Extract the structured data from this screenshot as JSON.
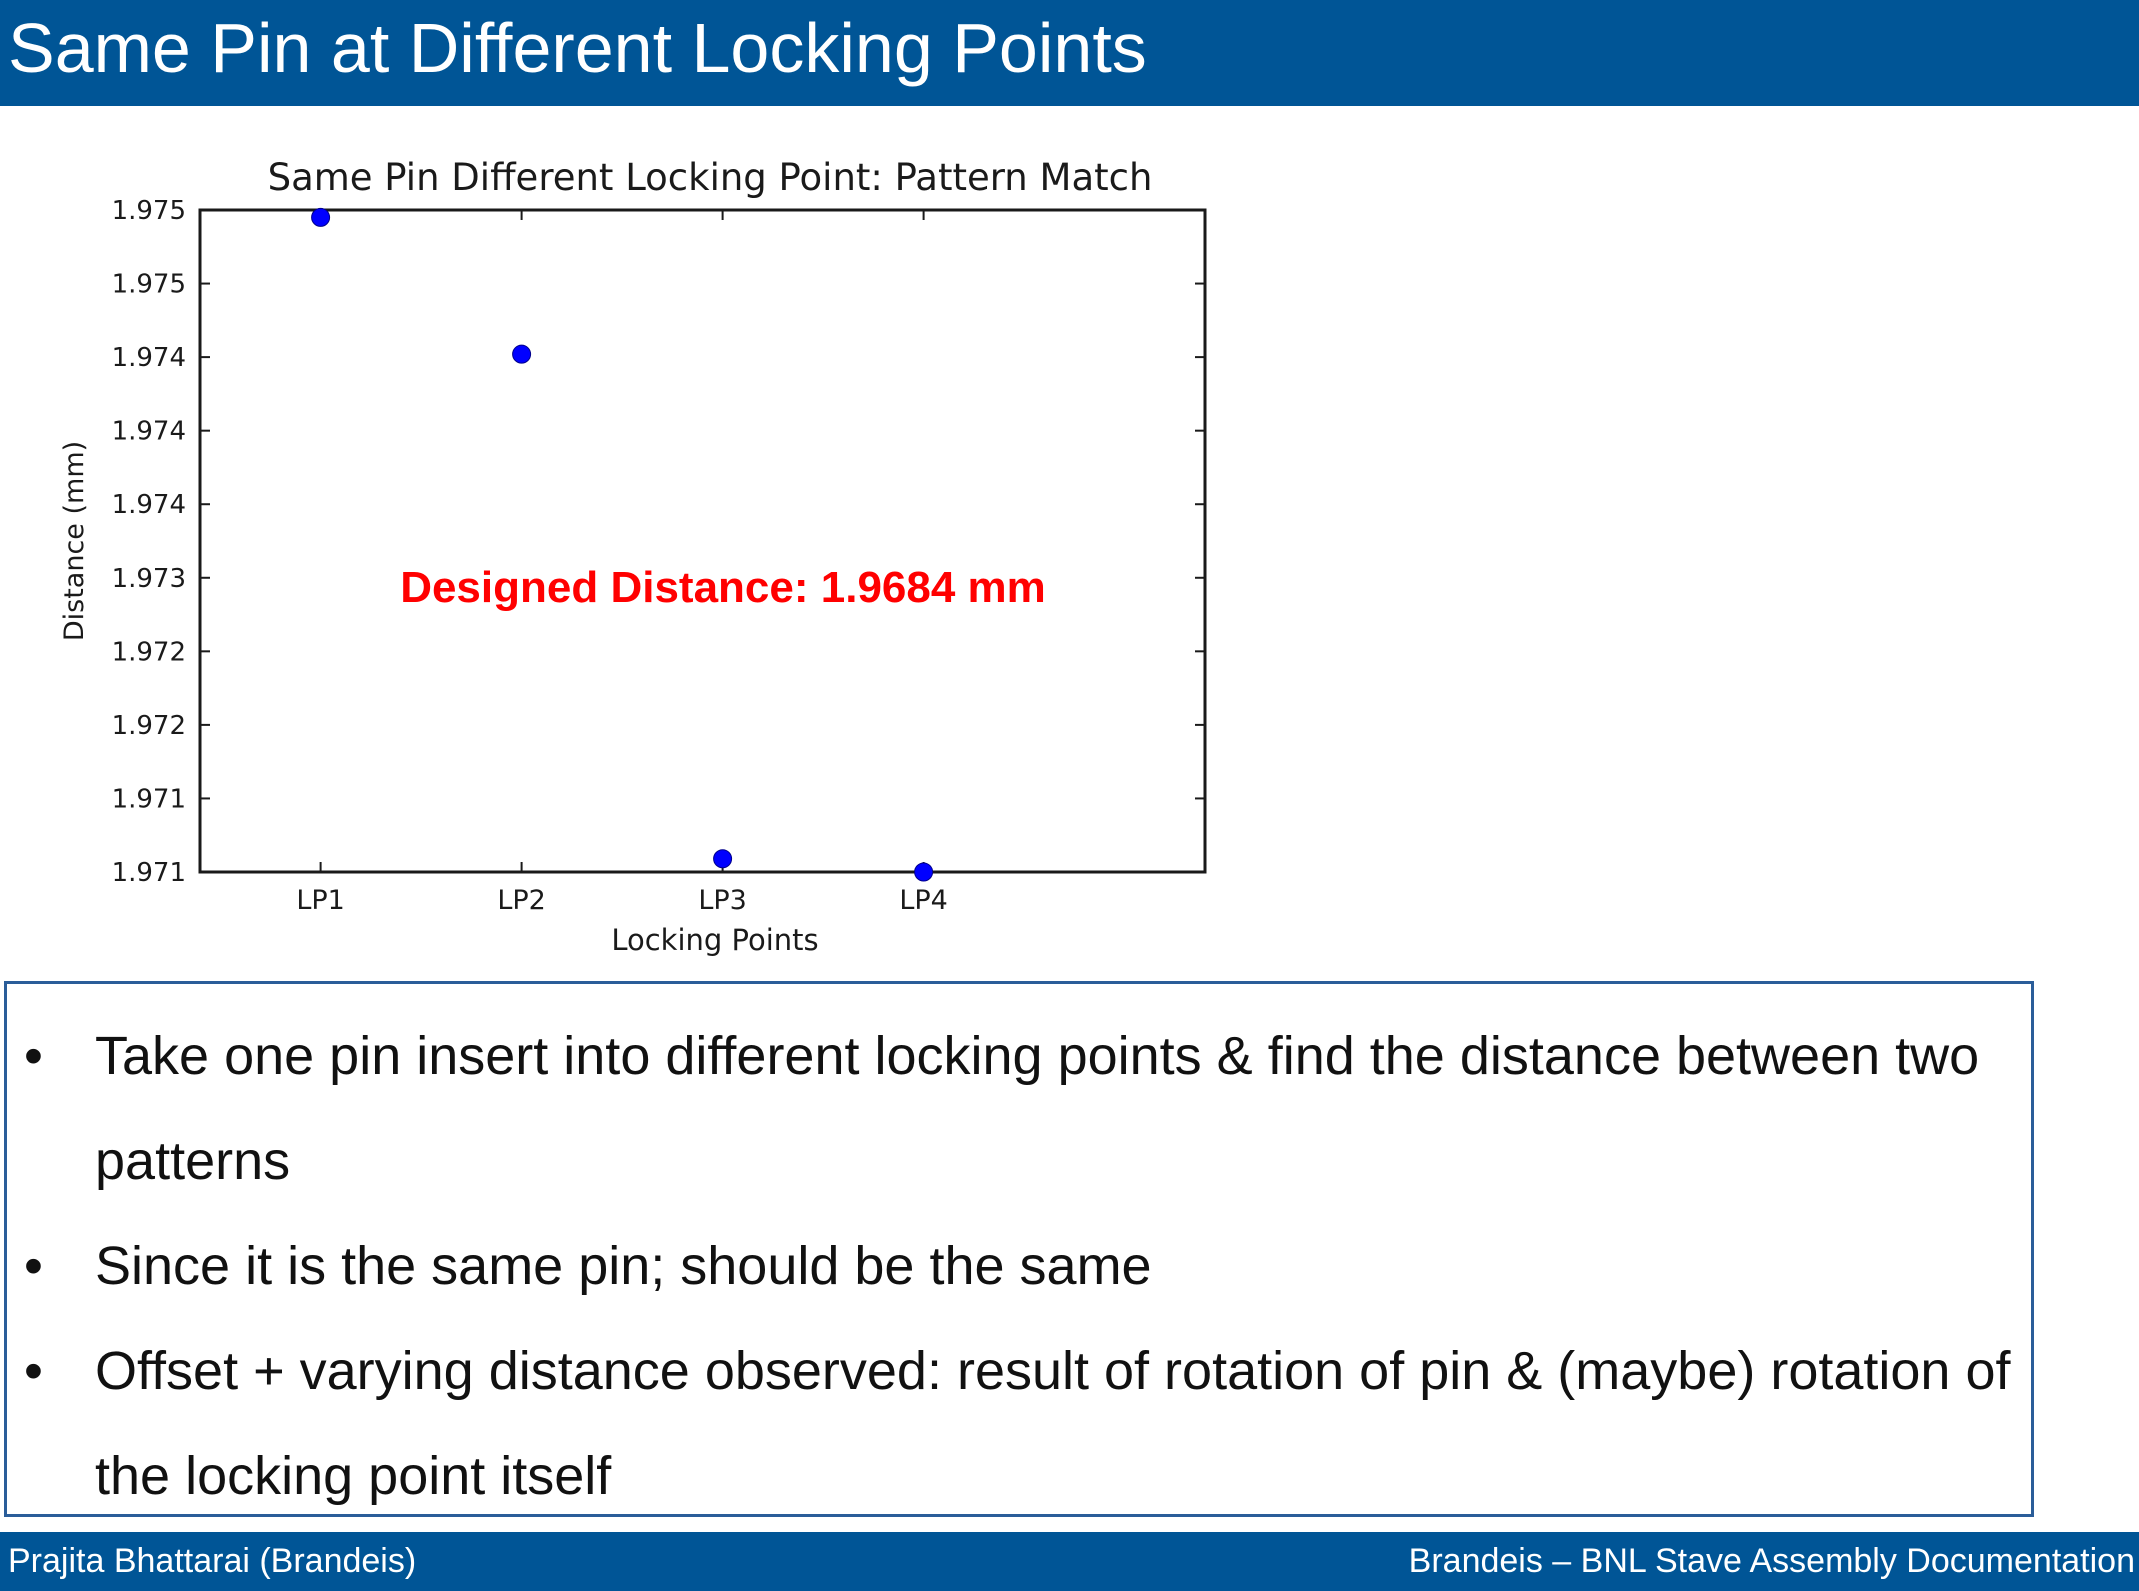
{
  "slide": {
    "title": "Same Pin at Different Locking Points"
  },
  "chart_data": {
    "type": "scatter",
    "title": "Same Pin Different Locking Point: Pattern Match",
    "xlabel": "Locking Points",
    "ylabel": "Distance (mm)",
    "categories": [
      "LP1",
      "LP2",
      "LP3",
      "LP4"
    ],
    "y_tick_labels": [
      "1.975",
      "1.975",
      "1.974",
      "1.974",
      "1.974",
      "1.973",
      "1.972",
      "1.972",
      "1.971",
      "1.971"
    ],
    "ylim": [
      1.9708,
      1.9753
    ],
    "series": [
      {
        "values": [
          1.97525,
          1.97432,
          1.97089,
          1.9708
        ],
        "color": "#0000ff"
      }
    ],
    "annotation": {
      "text": "Designed Distance: 1.9684 mm",
      "color": "#ff0000"
    },
    "grid": false,
    "legend": "none"
  },
  "notes": {
    "bullet_symbol": "•",
    "bullets": [
      "Take one pin insert into different locking points & find the distance between two patterns",
      "Since it is the same pin; should be the same",
      "Offset + varying distance observed: result of rotation of pin & (maybe) rotation of the locking point itself"
    ]
  },
  "footer": {
    "left": "Prajita Bhattarai (Brandeis)",
    "right": "Brandeis – BNL Stave Assembly Documentation"
  },
  "colors": {
    "accent": "#005596",
    "box_border": "#2a5d99"
  }
}
